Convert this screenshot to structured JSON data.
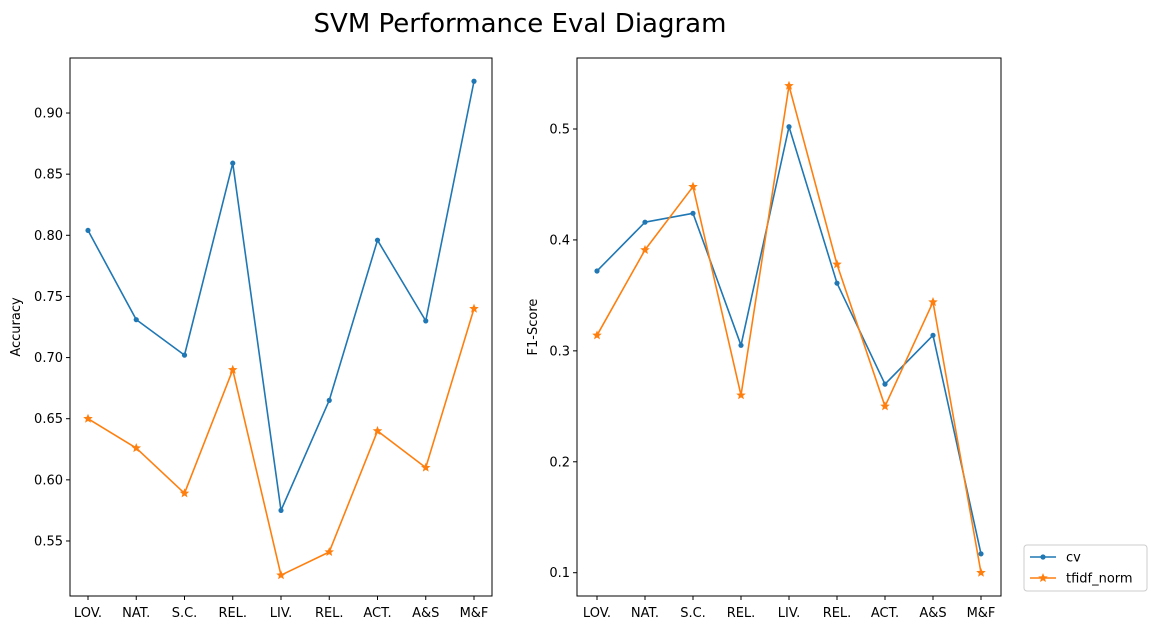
{
  "title": "SVM Performance Eval Diagram",
  "colors": {
    "cv": "#1f77b4",
    "tfidf_norm": "#ff7f0e"
  },
  "legend": {
    "placement": "lower-right-outside",
    "entries": [
      {
        "name": "cv",
        "marker": "dot"
      },
      {
        "name": "tfidf_norm",
        "marker": "star"
      }
    ]
  },
  "chart_data": [
    {
      "type": "line",
      "categories": [
        "LOV.",
        "NAT.",
        "S.C.",
        "REL.",
        "LIV.",
        "REL.",
        "ACT.",
        "A&S",
        "M&F"
      ],
      "ylabel": "Accuracy",
      "xlabel": "",
      "ylim": [
        0.505,
        0.945
      ],
      "yticks": [
        0.55,
        0.6,
        0.65,
        0.7,
        0.75,
        0.8,
        0.85,
        0.9
      ],
      "ytick_labels": [
        "0.55",
        "0.60",
        "0.65",
        "0.70",
        "0.75",
        "0.80",
        "0.85",
        "0.90"
      ],
      "grid": false,
      "series": [
        {
          "name": "cv",
          "values": [
            0.804,
            0.731,
            0.702,
            0.859,
            0.575,
            0.665,
            0.796,
            0.73,
            0.926
          ]
        },
        {
          "name": "tfidf_norm",
          "values": [
            0.65,
            0.626,
            0.589,
            0.69,
            0.522,
            0.541,
            0.64,
            0.61,
            0.74
          ]
        }
      ]
    },
    {
      "type": "line",
      "categories": [
        "LOV.",
        "NAT.",
        "S.C.",
        "REL.",
        "LIV.",
        "REL.",
        "ACT.",
        "A&S",
        "M&F"
      ],
      "ylabel": "F1-Score",
      "xlabel": "",
      "ylim": [
        0.079,
        0.564
      ],
      "yticks": [
        0.1,
        0.2,
        0.3,
        0.4,
        0.5
      ],
      "ytick_labels": [
        "0.1",
        "0.2",
        "0.3",
        "0.4",
        "0.5"
      ],
      "grid": false,
      "series": [
        {
          "name": "cv",
          "values": [
            0.372,
            0.416,
            0.424,
            0.305,
            0.502,
            0.361,
            0.27,
            0.314,
            0.117
          ]
        },
        {
          "name": "tfidf_norm",
          "values": [
            0.314,
            0.391,
            0.448,
            0.26,
            0.539,
            0.378,
            0.25,
            0.344,
            0.1
          ]
        }
      ]
    }
  ]
}
